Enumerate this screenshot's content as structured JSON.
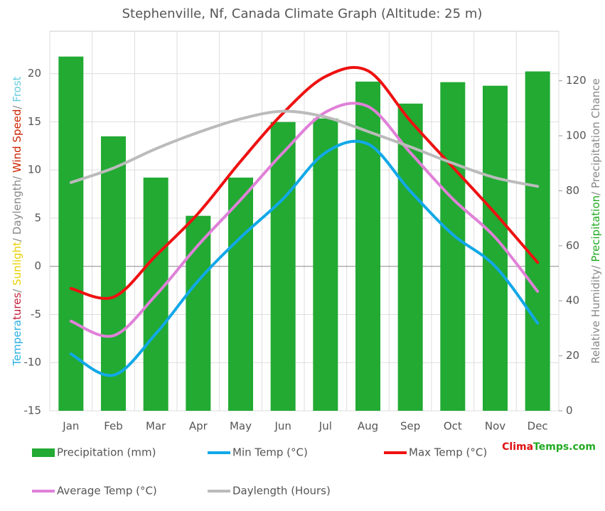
{
  "chart_data": {
    "type": "bar",
    "title": "Stephenville, Nf, Canada Climate Graph (Altitude: 25 m)",
    "categories": [
      "Jan",
      "Feb",
      "Mar",
      "Apr",
      "May",
      "Jun",
      "Jul",
      "Aug",
      "Sep",
      "Oct",
      "Nov",
      "Dec"
    ],
    "ylim": [
      -15,
      24.4
    ],
    "yticks": [
      -15,
      -10,
      -5,
      0,
      5,
      10,
      15,
      20
    ],
    "y2lim": [
      0,
      138
    ],
    "y2ticks": [
      0,
      20,
      40,
      60,
      80,
      100,
      120
    ],
    "grid": true,
    "y_label_parts": [
      {
        "text": "Tempera",
        "color": "#2ab0e0"
      },
      {
        "text": "tures",
        "color": "#c0203a"
      },
      {
        "text": "/ ",
        "color": "#888888"
      },
      {
        "text": "Sunlight",
        "color": "#e8d000"
      },
      {
        "text": "/ Daylength/ ",
        "color": "#888888"
      },
      {
        "text": "Wind Speed",
        "color": "#cc2200"
      },
      {
        "text": "/ ",
        "color": "#888888"
      },
      {
        "text": "Frost",
        "color": "#66ccdd"
      }
    ],
    "y2_label_parts": [
      {
        "text": "Relative Humidity/ ",
        "color": "#888888"
      },
      {
        "text": "Precipitation",
        "color": "#22aa22"
      },
      {
        "text": "/ Precipitation Chance",
        "color": "#888888"
      }
    ],
    "brand_parts": [
      {
        "text": "Clima",
        "color": "#dd1111"
      },
      {
        "text": "Temps.com",
        "color": "#22aa22"
      }
    ],
    "series": [
      {
        "name": "Precipitation (mm)",
        "type": "bar",
        "axis": "y2",
        "color": "#22aa33",
        "values": [
          128.8,
          99.8,
          84.8,
          70.9,
          84.8,
          105,
          106.3,
          119.7,
          111.7,
          119.5,
          118.2,
          123.4
        ]
      },
      {
        "name": "Min Temp (°C)",
        "type": "line",
        "color": "#11a8e8",
        "values": [
          -9.1,
          -11.3,
          -7.0,
          -1.5,
          3.0,
          7.0,
          11.8,
          12.7,
          7.8,
          3.3,
          0,
          -5.9
        ]
      },
      {
        "name": "Max Temp (°C)",
        "type": "line",
        "color": "#ee1111",
        "values": [
          -2.3,
          -3.2,
          1.1,
          5.5,
          10.9,
          15.9,
          19.7,
          20.3,
          15.1,
          10.3,
          5.5,
          0.4
        ]
      },
      {
        "name": "Average Temp (°C)",
        "type": "line",
        "color": "#e080d8",
        "values": [
          -5.7,
          -7.2,
          -3.0,
          2.2,
          6.9,
          11.8,
          16.0,
          16.6,
          11.8,
          7.0,
          3.0,
          -2.6
        ]
      },
      {
        "name": "Daylength (Hours)",
        "type": "line",
        "color": "#bbbbbb",
        "values": [
          8.7,
          10.2,
          12.2,
          13.9,
          15.3,
          16.1,
          15.5,
          14.0,
          12.4,
          10.7,
          9.2,
          8.3
        ]
      }
    ]
  }
}
